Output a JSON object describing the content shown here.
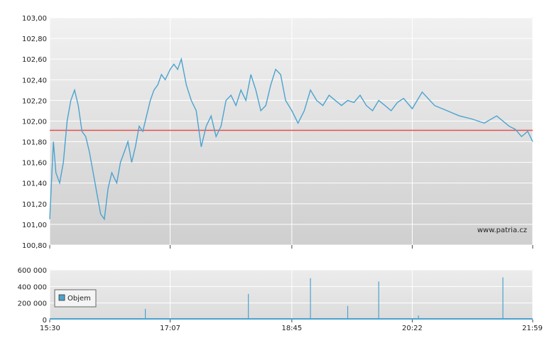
{
  "chart_data": [
    {
      "type": "line",
      "name": "price",
      "title": "",
      "xlabel": "",
      "ylabel": "",
      "ylim": [
        100.8,
        103.0
      ],
      "yticks": [
        "103,00",
        "102,80",
        "102,60",
        "102,40",
        "102,20",
        "102,00",
        "101,80",
        "101,60",
        "101,40",
        "101,20",
        "101,00",
        "100,80"
      ],
      "reference_line": 101.91,
      "reference_color": "#e05050",
      "line_color": "#4aa3cf",
      "watermark": "www.patria.cz",
      "x": [
        "15:30",
        "15:33",
        "15:35",
        "15:38",
        "15:41",
        "15:44",
        "15:47",
        "15:50",
        "15:53",
        "15:56",
        "15:59",
        "16:02",
        "16:05",
        "16:08",
        "16:11",
        "16:14",
        "16:17",
        "16:20",
        "16:24",
        "16:27",
        "16:30",
        "16:33",
        "16:36",
        "16:39",
        "16:42",
        "16:45",
        "16:48",
        "16:51",
        "16:54",
        "16:57",
        "17:00",
        "17:03",
        "17:07",
        "17:10",
        "17:13",
        "17:16",
        "17:20",
        "17:24",
        "17:28",
        "17:32",
        "17:36",
        "17:40",
        "17:44",
        "17:48",
        "17:52",
        "17:56",
        "18:00",
        "18:04",
        "18:08",
        "18:12",
        "18:16",
        "18:20",
        "18:24",
        "18:28",
        "18:32",
        "18:36",
        "18:40",
        "18:45",
        "18:50",
        "18:55",
        "19:00",
        "19:05",
        "19:10",
        "19:15",
        "19:20",
        "19:25",
        "19:30",
        "19:35",
        "19:40",
        "19:45",
        "19:50",
        "19:55",
        "20:00",
        "20:05",
        "20:10",
        "20:15",
        "20:22",
        "20:30",
        "20:40",
        "20:50",
        "21:00",
        "21:10",
        "21:20",
        "21:30",
        "21:40",
        "21:45",
        "21:50",
        "21:55",
        "21:59"
      ],
      "values": [
        101.05,
        101.8,
        101.5,
        101.4,
        101.6,
        102.0,
        102.2,
        102.3,
        102.15,
        101.9,
        101.85,
        101.7,
        101.5,
        101.3,
        101.1,
        101.05,
        101.35,
        101.5,
        101.4,
        101.6,
        101.7,
        101.8,
        101.6,
        101.75,
        101.95,
        101.9,
        102.05,
        102.2,
        102.3,
        102.35,
        102.45,
        102.4,
        102.5,
        102.55,
        102.5,
        102.6,
        102.35,
        102.2,
        102.1,
        101.75,
        101.95,
        102.05,
        101.85,
        101.95,
        102.2,
        102.25,
        102.15,
        102.3,
        102.2,
        102.45,
        102.3,
        102.1,
        102.15,
        102.35,
        102.5,
        102.45,
        102.2,
        102.1,
        101.98,
        102.1,
        102.3,
        102.2,
        102.15,
        102.25,
        102.2,
        102.15,
        102.2,
        102.18,
        102.25,
        102.15,
        102.1,
        102.2,
        102.15,
        102.1,
        102.18,
        102.22,
        102.12,
        102.28,
        102.15,
        102.1,
        102.05,
        102.02,
        101.98,
        102.05,
        101.95,
        101.92,
        101.85,
        101.9,
        101.8
      ],
      "x_ticks": [
        "15:30",
        "17:07",
        "18:45",
        "20:22",
        "21:59"
      ],
      "grid": true
    },
    {
      "type": "bar",
      "name": "volume",
      "ylim": [
        0,
        600000
      ],
      "yticks": [
        "600 000",
        "400 000",
        "200 000",
        "0"
      ],
      "legend": "Objem",
      "legend_position": "left",
      "bar_color": "#4aa3cf",
      "x_ticks": [
        "15:30",
        "17:07",
        "18:45",
        "20:22",
        "21:59"
      ],
      "x": [
        "16:47",
        "18:10",
        "19:00",
        "19:30",
        "19:55",
        "20:27",
        "21:35"
      ],
      "values": [
        130000,
        310000,
        500000,
        165000,
        460000,
        50000,
        510000
      ],
      "grid": true
    }
  ]
}
